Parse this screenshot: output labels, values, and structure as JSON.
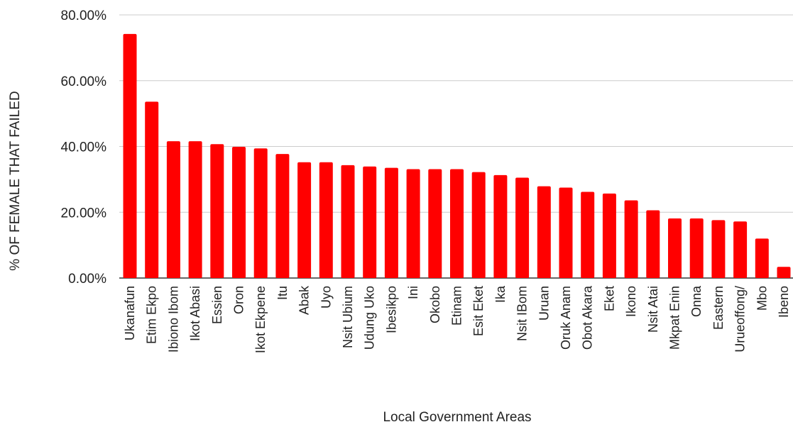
{
  "chart_data": {
    "type": "bar",
    "xlabel": "Local Government Areas",
    "ylabel": "% OF FEMALE THAT FAILED",
    "ylim": [
      0,
      80
    ],
    "y_ticks": [
      "0.00%",
      "20.00%",
      "40.00%",
      "60.00%",
      "80.00%"
    ],
    "y_tick_values": [
      0,
      20,
      40,
      60,
      80
    ],
    "grid": true,
    "bar_color": "#ff0000",
    "categories": [
      "Ukanafun",
      "Etim Ekpo",
      "Ibiono Ibom",
      "Ikot Abasi",
      "Essien",
      "Oron",
      "Ikot Ekpene",
      "Itu",
      "Abak",
      "Uyo",
      "Nsit Ubium",
      "Udung Uko",
      "Ibesikpo",
      "Ini",
      "Okobo",
      "Etinam",
      "Esit Eket",
      "Ika",
      "Nsit IBom",
      "Uruan",
      "Oruk Anam",
      "Obot Akara",
      "Eket",
      "Ikono",
      "Nsit Atai",
      "Mkpat Enin",
      "Onna",
      "Eastern",
      "Urueoffong/",
      "Mbo",
      "Ibeno"
    ],
    "values": [
      74.2,
      53.6,
      41.6,
      41.6,
      40.7,
      39.9,
      39.4,
      37.7,
      35.2,
      35.2,
      34.3,
      33.9,
      33.5,
      33.1,
      33.1,
      33.1,
      32.2,
      31.3,
      30.5,
      27.9,
      27.5,
      26.2,
      25.7,
      23.6,
      20.6,
      18.1,
      18.1,
      17.6,
      17.2,
      12.0,
      3.4
    ]
  }
}
